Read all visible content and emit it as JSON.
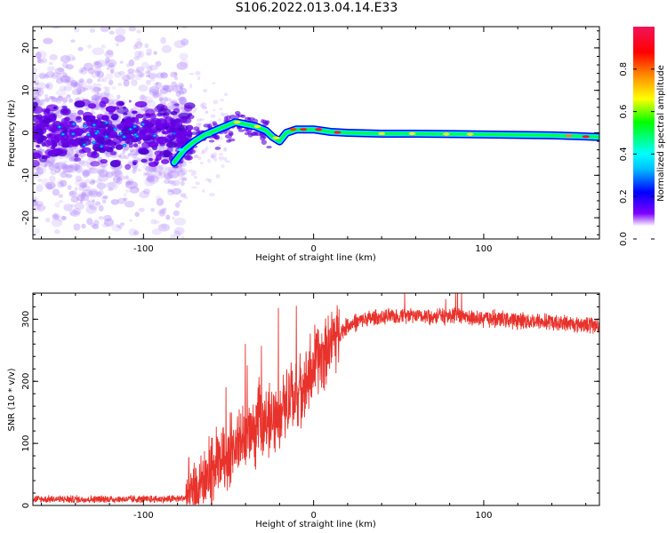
{
  "title": "S106.2022.013.04.14.E33",
  "colors": {
    "snr_line": "#e8322b",
    "spectral_low": "#ffffff",
    "spectral_high": "#f0145a"
  },
  "chart_data": [
    {
      "type": "heatmap",
      "xlabel": "Height of straight line (km)",
      "ylabel": "Frequency (Hz)",
      "xlim": [
        -165,
        168
      ],
      "ylim": [
        -25,
        25
      ],
      "xticks": [
        -100,
        0,
        100
      ],
      "yticks": [
        -20,
        -10,
        0,
        10,
        20
      ],
      "colorbar": {
        "label": "Normalized spectral amplitude",
        "range": [
          0,
          1
        ],
        "ticks": [
          0.0,
          0.2,
          0.4,
          0.6,
          0.8
        ],
        "colormap": [
          "#ffffff",
          "#7f00ff",
          "#0000ff",
          "#00ffff",
          "#00ff00",
          "#ffff00",
          "#ff8000",
          "#ff0000",
          "#f0145a"
        ]
      },
      "ridge": {
        "x": [
          -82,
          -76,
          -70,
          -64,
          -58,
          -52,
          -46,
          -40,
          -34,
          -28,
          -24,
          -20,
          -16,
          -10,
          -5,
          0,
          10,
          20,
          40,
          60,
          80,
          100,
          120,
          140,
          155,
          168
        ],
        "frequency": [
          -7,
          -4,
          -2,
          -0.5,
          0.5,
          1.5,
          2.5,
          2,
          1.5,
          0.5,
          -1,
          -2,
          0,
          0.8,
          0.8,
          0.8,
          0.2,
          0,
          -0.2,
          -0.2,
          -0.3,
          -0.4,
          -0.5,
          -0.6,
          -0.8,
          -1
        ]
      }
    },
    {
      "type": "line",
      "xlabel": "Height of straight line (km)",
      "ylabel": "SNR (10 * v/v)",
      "xlim": [
        -165,
        168
      ],
      "ylim": [
        0,
        342
      ],
      "xticks": [
        -100,
        0,
        100
      ],
      "yticks": [
        0,
        100,
        200,
        300
      ],
      "series": [
        {
          "x": [
            -165,
            -140,
            -110,
            -85,
            -75,
            -68,
            -62,
            -55,
            -48,
            -40,
            -32,
            -25,
            -20,
            -12,
            -5,
            0,
            10,
            20,
            30,
            50,
            80,
            110,
            140,
            168
          ],
          "values": [
            10,
            10,
            10,
            10,
            12,
            25,
            50,
            70,
            90,
            110,
            125,
            140,
            150,
            175,
            200,
            225,
            265,
            290,
            300,
            305,
            305,
            300,
            295,
            290
          ]
        }
      ]
    }
  ]
}
